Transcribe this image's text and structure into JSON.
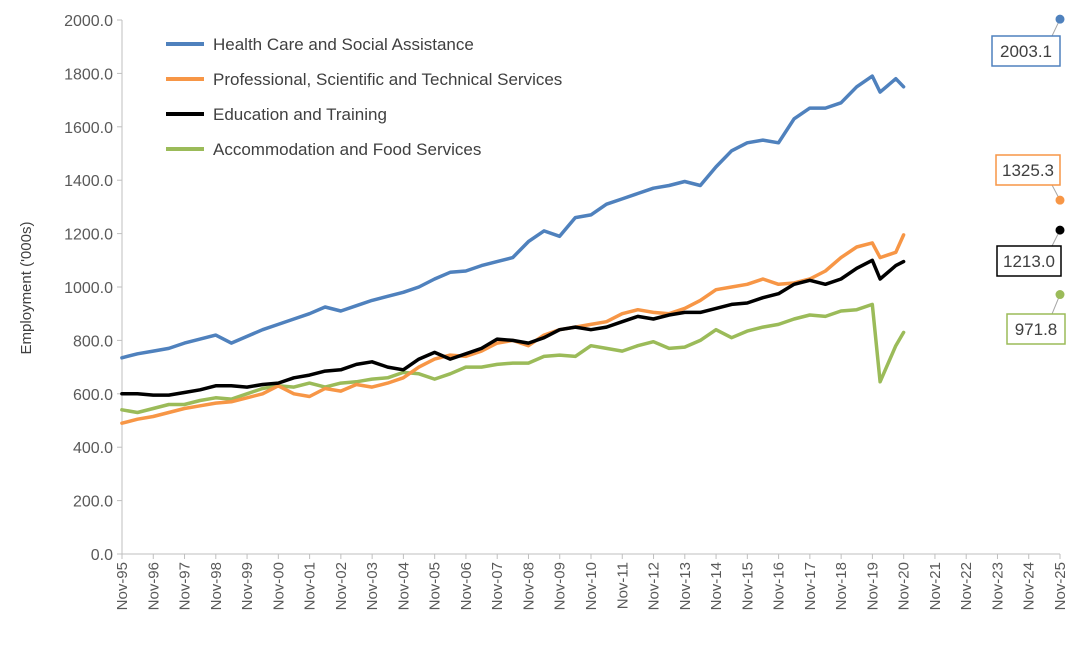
{
  "chart_data": {
    "type": "line",
    "title": "",
    "xlabel": "",
    "ylabel": "Employment ('000s)",
    "ylim": [
      0,
      2000
    ],
    "y_ticks": [
      "0.0",
      "200.0",
      "400.0",
      "600.0",
      "800.0",
      "1000.0",
      "1200.0",
      "1400.0",
      "1600.0",
      "1800.0",
      "2000.0"
    ],
    "x_ticks": [
      "Nov-95",
      "Nov-96",
      "Nov-97",
      "Nov-98",
      "Nov-99",
      "Nov-00",
      "Nov-01",
      "Nov-02",
      "Nov-03",
      "Nov-04",
      "Nov-05",
      "Nov-06",
      "Nov-07",
      "Nov-08",
      "Nov-09",
      "Nov-10",
      "Nov-11",
      "Nov-12",
      "Nov-13",
      "Nov-14",
      "Nov-15",
      "Nov-16",
      "Nov-17",
      "Nov-18",
      "Nov-19",
      "Nov-20",
      "Nov-21",
      "Nov-22",
      "Nov-23",
      "Nov-24",
      "Nov-25"
    ],
    "x_range": [
      1995.833,
      2025.833
    ],
    "grid": false,
    "legend_position": "top-left",
    "series": [
      {
        "name": "Health Care and Social Assistance",
        "color": "#4F81BD",
        "points": [
          [
            1995.83,
            735
          ],
          [
            1996.33,
            750
          ],
          [
            1996.83,
            760
          ],
          [
            1997.33,
            770
          ],
          [
            1997.83,
            790
          ],
          [
            1998.33,
            805
          ],
          [
            1998.83,
            820
          ],
          [
            1999.33,
            790
          ],
          [
            1999.83,
            815
          ],
          [
            2000.33,
            840
          ],
          [
            2000.83,
            860
          ],
          [
            2001.33,
            880
          ],
          [
            2001.83,
            900
          ],
          [
            2002.33,
            925
          ],
          [
            2002.83,
            910
          ],
          [
            2003.33,
            930
          ],
          [
            2003.83,
            950
          ],
          [
            2004.33,
            965
          ],
          [
            2004.83,
            980
          ],
          [
            2005.33,
            1000
          ],
          [
            2005.83,
            1030
          ],
          [
            2006.33,
            1055
          ],
          [
            2006.83,
            1060
          ],
          [
            2007.33,
            1080
          ],
          [
            2007.83,
            1095
          ],
          [
            2008.33,
            1110
          ],
          [
            2008.83,
            1170
          ],
          [
            2009.33,
            1210
          ],
          [
            2009.83,
            1190
          ],
          [
            2010.33,
            1260
          ],
          [
            2010.83,
            1270
          ],
          [
            2011.33,
            1310
          ],
          [
            2011.83,
            1330
          ],
          [
            2012.33,
            1350
          ],
          [
            2012.83,
            1370
          ],
          [
            2013.33,
            1380
          ],
          [
            2013.83,
            1395
          ],
          [
            2014.33,
            1380
          ],
          [
            2014.83,
            1450
          ],
          [
            2015.33,
            1510
          ],
          [
            2015.83,
            1540
          ],
          [
            2016.33,
            1550
          ],
          [
            2016.83,
            1540
          ],
          [
            2017.33,
            1630
          ],
          [
            2017.83,
            1670
          ],
          [
            2018.33,
            1670
          ],
          [
            2018.83,
            1690
          ],
          [
            2019.33,
            1750
          ],
          [
            2019.83,
            1790
          ],
          [
            2020.08,
            1730
          ],
          [
            2020.58,
            1780
          ],
          [
            2020.83,
            1750
          ]
        ],
        "projection": 2003.1,
        "projection_label": "2003.1"
      },
      {
        "name": "Professional, Scientific and Technical Services",
        "color": "#F79646",
        "points": [
          [
            1995.83,
            490
          ],
          [
            1996.33,
            505
          ],
          [
            1996.83,
            515
          ],
          [
            1997.33,
            530
          ],
          [
            1997.83,
            545
          ],
          [
            1998.33,
            555
          ],
          [
            1998.83,
            565
          ],
          [
            1999.33,
            570
          ],
          [
            1999.83,
            585
          ],
          [
            2000.33,
            600
          ],
          [
            2000.83,
            630
          ],
          [
            2001.33,
            600
          ],
          [
            2001.83,
            590
          ],
          [
            2002.33,
            620
          ],
          [
            2002.83,
            610
          ],
          [
            2003.33,
            635
          ],
          [
            2003.83,
            625
          ],
          [
            2004.33,
            640
          ],
          [
            2004.83,
            660
          ],
          [
            2005.33,
            700
          ],
          [
            2005.83,
            730
          ],
          [
            2006.33,
            745
          ],
          [
            2006.83,
            740
          ],
          [
            2007.33,
            760
          ],
          [
            2007.83,
            790
          ],
          [
            2008.33,
            800
          ],
          [
            2008.83,
            780
          ],
          [
            2009.33,
            820
          ],
          [
            2009.83,
            840
          ],
          [
            2010.33,
            850
          ],
          [
            2010.83,
            860
          ],
          [
            2011.33,
            870
          ],
          [
            2011.83,
            900
          ],
          [
            2012.33,
            915
          ],
          [
            2012.83,
            905
          ],
          [
            2013.33,
            900
          ],
          [
            2013.83,
            920
          ],
          [
            2014.33,
            950
          ],
          [
            2014.83,
            990
          ],
          [
            2015.33,
            1000
          ],
          [
            2015.83,
            1010
          ],
          [
            2016.33,
            1030
          ],
          [
            2016.83,
            1010
          ],
          [
            2017.33,
            1015
          ],
          [
            2017.83,
            1030
          ],
          [
            2018.33,
            1060
          ],
          [
            2018.83,
            1110
          ],
          [
            2019.33,
            1150
          ],
          [
            2019.83,
            1165
          ],
          [
            2020.08,
            1110
          ],
          [
            2020.58,
            1130
          ],
          [
            2020.83,
            1195
          ]
        ],
        "projection": 1325.3,
        "projection_label": "1325.3"
      },
      {
        "name": "Education and Training",
        "color": "#000000",
        "points": [
          [
            1995.83,
            600
          ],
          [
            1996.33,
            600
          ],
          [
            1996.83,
            595
          ],
          [
            1997.33,
            595
          ],
          [
            1997.83,
            605
          ],
          [
            1998.33,
            615
          ],
          [
            1998.83,
            630
          ],
          [
            1999.33,
            630
          ],
          [
            1999.83,
            625
          ],
          [
            2000.33,
            635
          ],
          [
            2000.83,
            640
          ],
          [
            2001.33,
            660
          ],
          [
            2001.83,
            670
          ],
          [
            2002.33,
            685
          ],
          [
            2002.83,
            690
          ],
          [
            2003.33,
            710
          ],
          [
            2003.83,
            720
          ],
          [
            2004.33,
            700
          ],
          [
            2004.83,
            690
          ],
          [
            2005.33,
            730
          ],
          [
            2005.83,
            755
          ],
          [
            2006.33,
            730
          ],
          [
            2006.83,
            750
          ],
          [
            2007.33,
            770
          ],
          [
            2007.83,
            805
          ],
          [
            2008.33,
            800
          ],
          [
            2008.83,
            790
          ],
          [
            2009.33,
            810
          ],
          [
            2009.83,
            840
          ],
          [
            2010.33,
            850
          ],
          [
            2010.83,
            840
          ],
          [
            2011.33,
            850
          ],
          [
            2011.83,
            870
          ],
          [
            2012.33,
            890
          ],
          [
            2012.83,
            880
          ],
          [
            2013.33,
            895
          ],
          [
            2013.83,
            905
          ],
          [
            2014.33,
            905
          ],
          [
            2014.83,
            920
          ],
          [
            2015.33,
            935
          ],
          [
            2015.83,
            940
          ],
          [
            2016.33,
            960
          ],
          [
            2016.83,
            975
          ],
          [
            2017.33,
            1010
          ],
          [
            2017.83,
            1025
          ],
          [
            2018.33,
            1010
          ],
          [
            2018.83,
            1030
          ],
          [
            2019.33,
            1070
          ],
          [
            2019.83,
            1100
          ],
          [
            2020.08,
            1030
          ],
          [
            2020.58,
            1080
          ],
          [
            2020.83,
            1095
          ]
        ],
        "projection": 1213.0,
        "projection_label": "1213.0"
      },
      {
        "name": "Accommodation and Food Services",
        "color": "#9BBB59",
        "points": [
          [
            1995.83,
            540
          ],
          [
            1996.33,
            530
          ],
          [
            1996.83,
            545
          ],
          [
            1997.33,
            560
          ],
          [
            1997.83,
            560
          ],
          [
            1998.33,
            575
          ],
          [
            1998.83,
            585
          ],
          [
            1999.33,
            580
          ],
          [
            1999.83,
            600
          ],
          [
            2000.33,
            620
          ],
          [
            2000.83,
            630
          ],
          [
            2001.33,
            625
          ],
          [
            2001.83,
            640
          ],
          [
            2002.33,
            625
          ],
          [
            2002.83,
            640
          ],
          [
            2003.33,
            645
          ],
          [
            2003.83,
            655
          ],
          [
            2004.33,
            660
          ],
          [
            2004.83,
            680
          ],
          [
            2005.33,
            675
          ],
          [
            2005.83,
            655
          ],
          [
            2006.33,
            675
          ],
          [
            2006.83,
            700
          ],
          [
            2007.33,
            700
          ],
          [
            2007.83,
            710
          ],
          [
            2008.33,
            715
          ],
          [
            2008.83,
            715
          ],
          [
            2009.33,
            740
          ],
          [
            2009.83,
            745
          ],
          [
            2010.33,
            740
          ],
          [
            2010.83,
            780
          ],
          [
            2011.33,
            770
          ],
          [
            2011.83,
            760
          ],
          [
            2012.33,
            780
          ],
          [
            2012.83,
            795
          ],
          [
            2013.33,
            770
          ],
          [
            2013.83,
            775
          ],
          [
            2014.33,
            800
          ],
          [
            2014.83,
            840
          ],
          [
            2015.33,
            810
          ],
          [
            2015.83,
            835
          ],
          [
            2016.33,
            850
          ],
          [
            2016.83,
            860
          ],
          [
            2017.33,
            880
          ],
          [
            2017.83,
            895
          ],
          [
            2018.33,
            890
          ],
          [
            2018.83,
            910
          ],
          [
            2019.33,
            915
          ],
          [
            2019.83,
            935
          ],
          [
            2020.08,
            645
          ],
          [
            2020.58,
            780
          ],
          [
            2020.83,
            830
          ]
        ],
        "projection": 971.8,
        "projection_label": "971.8"
      }
    ]
  }
}
